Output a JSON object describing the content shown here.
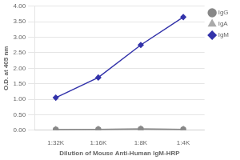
{
  "chart_data": {
    "type": "line",
    "x_label": "Dilution of Mouse Anti-Human IgM-HRP",
    "y_label": "O.D. at 405 nm",
    "categories": [
      "1:32K",
      "1:16K",
      "1:8K",
      "1:4K"
    ],
    "series": [
      {
        "name": "IgG",
        "color": "#888888",
        "marker": "circle",
        "values": [
          0.02,
          0.03,
          0.04,
          0.03
        ]
      },
      {
        "name": "IgA",
        "color": "#AAAAAA",
        "marker": "triangle",
        "values": [
          0.02,
          0.03,
          0.04,
          0.03
        ]
      },
      {
        "name": "IgM",
        "color": "#3333AA",
        "marker": "diamond",
        "values": [
          1.05,
          1.7,
          2.75,
          3.65
        ]
      }
    ],
    "ylim": [
      0.0,
      4.0
    ],
    "yticks": [
      {
        "value": 0.0,
        "label": "0.00"
      },
      {
        "value": 0.5,
        "label": "0.50"
      },
      {
        "value": 1.0,
        "label": "1.00"
      },
      {
        "value": 1.5,
        "label": "1.50"
      },
      {
        "value": 2.0,
        "label": "2.00"
      },
      {
        "value": 2.5,
        "label": "2.50"
      },
      {
        "value": 3.0,
        "label": "3.00"
      },
      {
        "value": 3.5,
        "label": "3.50"
      },
      {
        "value": 4.0,
        "label": "4.00"
      }
    ],
    "grid": true,
    "legend": "right"
  }
}
